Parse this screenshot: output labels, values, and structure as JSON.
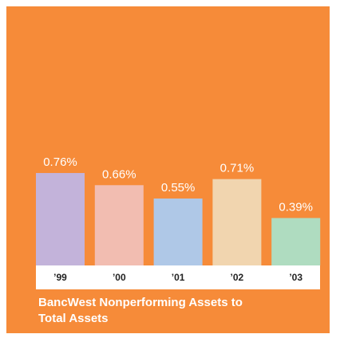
{
  "chart_data": {
    "type": "bar",
    "title": "BancWest Nonperforming Assets to Total Assets",
    "categories": [
      "’99",
      "’00",
      "’01",
      "’02",
      "’03"
    ],
    "values": [
      0.76,
      0.66,
      0.55,
      0.71,
      0.39
    ],
    "value_labels": [
      "0.76%",
      "0.66%",
      "0.55%",
      "0.71%",
      "0.39%"
    ],
    "colors": [
      "#c3b3da",
      "#f2bdb1",
      "#afc8e7",
      "#f1d5af",
      "#afdcc0"
    ]
  }
}
